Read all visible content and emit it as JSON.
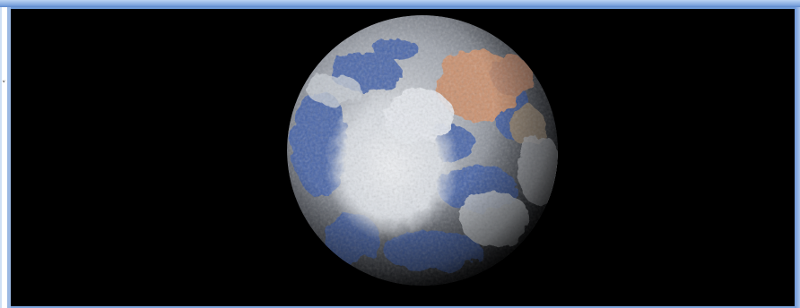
{
  "window": {
    "viewport_icon": "planet-globe",
    "colors": {
      "background": "#000000",
      "frame": "#6f9bd6",
      "ocean": "#3f5fa8",
      "cloud": "#e4e8ee",
      "desert": "#c98f6d"
    }
  }
}
